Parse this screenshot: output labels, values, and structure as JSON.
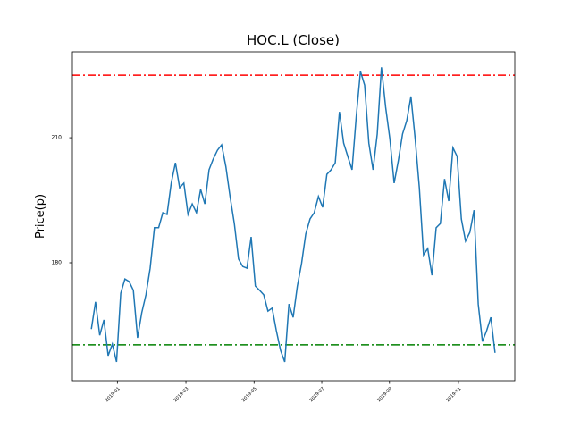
{
  "chart_data": {
    "type": "line",
    "title": "HOC.L (Close)",
    "y_label": "Price(p)",
    "series": [
      {
        "color": "#1f77b4",
        "values": [
          164.1,
          170.6,
          162.6,
          166.3,
          157.7,
          160.5,
          156.2,
          172.7,
          176.1,
          175.5,
          173.4,
          162,
          168,
          172.3,
          178.7,
          188.4,
          188.4,
          192,
          191.6,
          199.1,
          204,
          198,
          199.1,
          191.6,
          194.1,
          192,
          197.6,
          194.1,
          202.3,
          204.9,
          207,
          208.3,
          203.1,
          195.9,
          189.4,
          180.9,
          179.1,
          178.7,
          186.2,
          174.4,
          173.4,
          172.3,
          168.4,
          169.1,
          163.7,
          159,
          156.2,
          170.1,
          166.9,
          174.4,
          179.8,
          186.9,
          190.5,
          192,
          195.9,
          193.3,
          201.2,
          202.3,
          204,
          216.2,
          208.7,
          205.5,
          202.3,
          215.1,
          225.9,
          222.6,
          208.7,
          202.3,
          210.9,
          226.9,
          217.3,
          209.6,
          199.1,
          204.5,
          210.9,
          214.1,
          219.9,
          209.8,
          198,
          181.9,
          183.4,
          177,
          188.4,
          189.4,
          200.1,
          194.8,
          207.6,
          205.5,
          190.5,
          185.2,
          187.3,
          192.6,
          170.1,
          161.1,
          163.7,
          166.9,
          158.4
        ]
      }
    ],
    "xlim": [
      -4.5,
      100.7
    ],
    "xticks": [
      {
        "value": 6.2,
        "label": "2019-01"
      },
      {
        "value": 22.5,
        "label": "2019-03"
      },
      {
        "value": 38.7,
        "label": "2019-05"
      },
      {
        "value": 54.8,
        "label": "2019-07"
      },
      {
        "value": 70.9,
        "label": "2019-09"
      },
      {
        "value": 87.3,
        "label": "2019-11"
      }
    ],
    "ylim": [
      151.7,
      230.6
    ],
    "yticks": [
      180,
      210
    ],
    "hlines": [
      {
        "value": 225,
        "color": "#ff0000"
      },
      {
        "value": 160.3,
        "color": "#008000"
      }
    ]
  }
}
